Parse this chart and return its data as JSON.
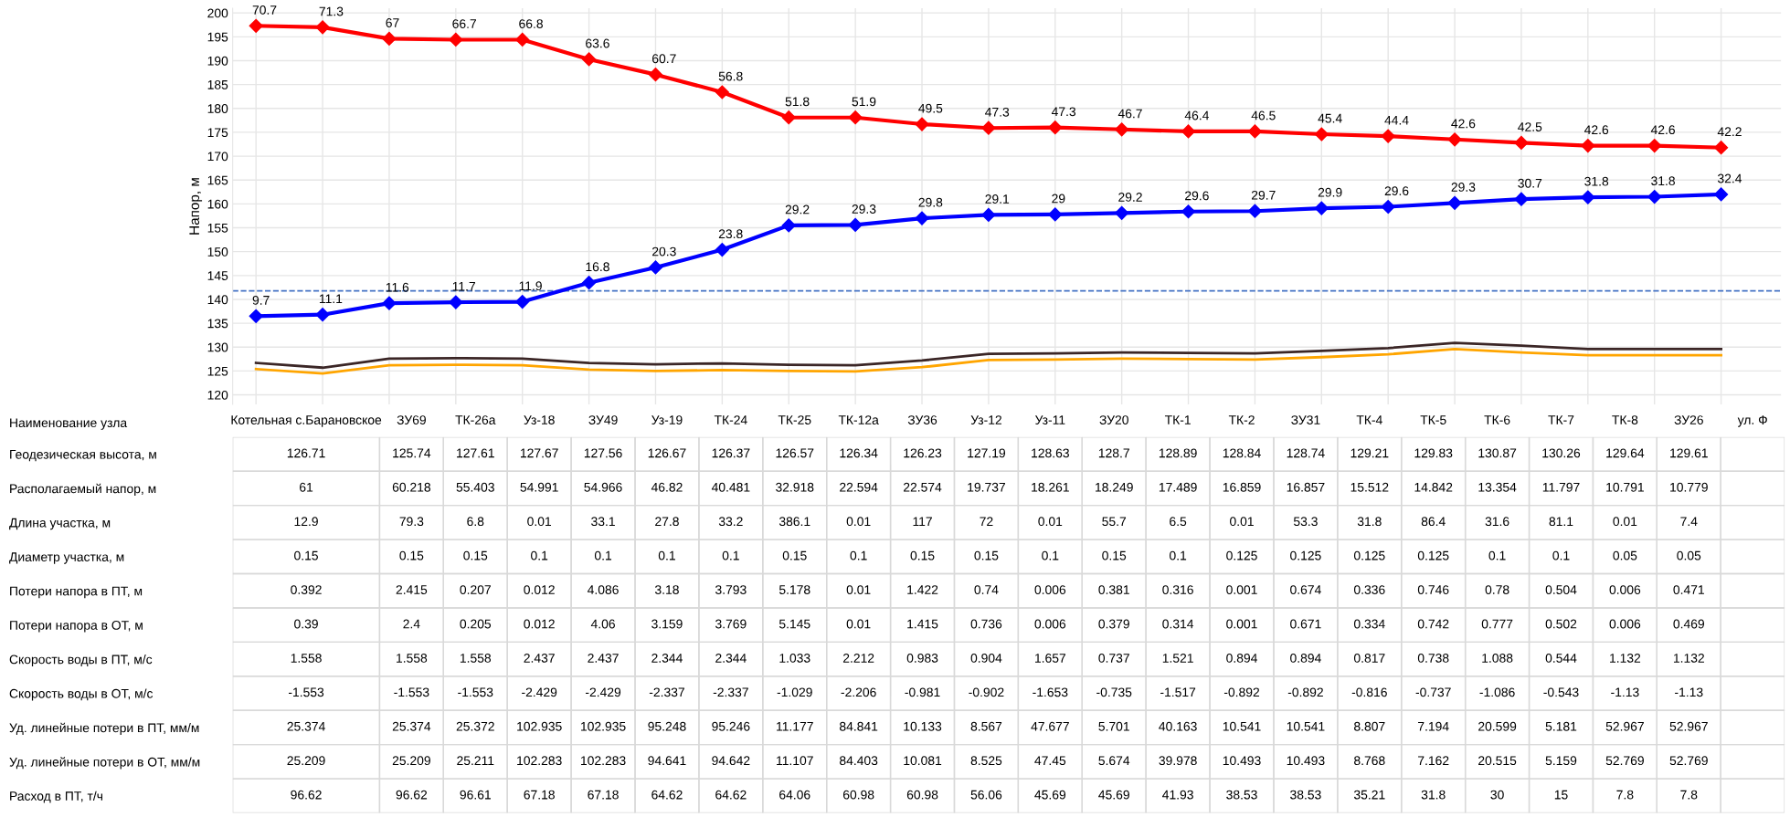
{
  "chart_data": [
    {
      "type": "line",
      "ylabel": "Напор, м",
      "categories": [
        null,
        null,
        null,
        null,
        null,
        null,
        null,
        null,
        null,
        null,
        null,
        null,
        null,
        null,
        null,
        null,
        null,
        null,
        null,
        null,
        null,
        null,
        null
      ],
      "ylim": [
        118,
        201
      ],
      "yticks": [
        120,
        125,
        130,
        135,
        140,
        145,
        150,
        155,
        160,
        165,
        170,
        175,
        180,
        185,
        190,
        195,
        200
      ],
      "grid": true,
      "tick_labels": "y",
      "ref_lines": [
        {
          "axis": "y",
          "value": 141.8,
          "color": "#4472c4",
          "line_style": "dashed"
        }
      ],
      "series": [
        {
          "color": "#ff0000",
          "marker": "diamond",
          "values": [
            197.3,
            197.0,
            194.6,
            194.4,
            194.4,
            190.3,
            187.1,
            183.4,
            178.1,
            178.1,
            176.7,
            175.9,
            176.0,
            175.6,
            175.2,
            175.2,
            174.6,
            174.2,
            173.5,
            172.8,
            172.2,
            172.2,
            171.8
          ]
        },
        {
          "color": "#0000ff",
          "marker": "diamond",
          "values": [
            136.5,
            136.8,
            139.2,
            139.4,
            139.5,
            143.5,
            146.7,
            150.4,
            155.5,
            155.6,
            157.0,
            157.7,
            157.8,
            158.1,
            158.4,
            158.5,
            159.1,
            159.4,
            160.2,
            161.0,
            161.4,
            161.5,
            162.0
          ]
        },
        {
          "color": "#3b2626",
          "marker": "none",
          "values": [
            126.7,
            125.7,
            127.6,
            127.7,
            127.6,
            126.7,
            126.4,
            126.6,
            126.3,
            126.2,
            127.2,
            128.6,
            128.7,
            128.9,
            128.8,
            128.7,
            129.2,
            129.8,
            130.9,
            130.3,
            129.6,
            129.6,
            129.6
          ]
        },
        {
          "color": "#ffa500",
          "marker": "none",
          "values": [
            125.4,
            124.5,
            126.2,
            126.3,
            126.2,
            125.3,
            125.0,
            125.2,
            125.0,
            124.9,
            125.8,
            127.3,
            127.4,
            127.6,
            127.5,
            127.4,
            127.9,
            128.5,
            129.6,
            128.9,
            128.3,
            128.3,
            128.3
          ]
        }
      ],
      "annotations": [
        {
          "text": "70.7",
          "y": 197.3
        },
        {
          "text": "71.3",
          "y": 197.0
        },
        {
          "text": "67",
          "y": 194.6
        },
        {
          "text": "66.7",
          "y": 194.4
        },
        {
          "text": "66.8",
          "y": 194.4
        },
        {
          "text": "63.6",
          "y": 190.3
        },
        {
          "text": "60.7",
          "y": 187.1
        },
        {
          "text": "56.8",
          "y": 183.4
        },
        {
          "text": "51.8",
          "y": 178.1
        },
        {
          "text": "51.9",
          "y": 178.1
        },
        {
          "text": "49.5",
          "y": 176.7
        },
        {
          "text": "47.3",
          "y": 175.9
        },
        {
          "text": "47.3",
          "y": 176.0
        },
        {
          "text": "46.7",
          "y": 175.6
        },
        {
          "text": "46.4",
          "y": 175.2
        },
        {
          "text": "46.5",
          "y": 175.2
        },
        {
          "text": "45.4",
          "y": 174.6
        },
        {
          "text": "44.4",
          "y": 174.2
        },
        {
          "text": "42.6",
          "y": 173.5
        },
        {
          "text": "42.5",
          "y": 172.8
        },
        {
          "text": "42.6",
          "y": 172.2
        },
        {
          "text": "42.6",
          "y": 172.2
        },
        {
          "text": "42.2",
          "y": 171.8
        },
        {
          "text": "9.7",
          "y": 136.5
        },
        {
          "text": "11.1",
          "y": 136.8
        },
        {
          "text": "11.6",
          "y": 139.2
        },
        {
          "text": "11.7",
          "y": 139.4
        },
        {
          "text": "11.9",
          "y": 139.5
        },
        {
          "text": "16.8",
          "y": 143.5
        },
        {
          "text": "20.3",
          "y": 146.7
        },
        {
          "text": "23.8",
          "y": 150.4
        },
        {
          "text": "29.2",
          "y": 155.5
        },
        {
          "text": "29.3",
          "y": 155.6
        },
        {
          "text": "29.8",
          "y": 157.0
        },
        {
          "text": "29.1",
          "y": 157.7
        },
        {
          "text": "29",
          "y": 157.8
        },
        {
          "text": "29.2",
          "y": 158.1
        },
        {
          "text": "29.6",
          "y": 158.4
        },
        {
          "text": "29.7",
          "y": 158.5
        },
        {
          "text": "29.9",
          "y": 159.1
        },
        {
          "text": "29.6",
          "y": 159.4
        },
        {
          "text": "29.3",
          "y": 160.2
        },
        {
          "text": "30.7",
          "y": 161.0
        },
        {
          "text": "31.8",
          "y": 161.4
        },
        {
          "text": "31.8",
          "y": 161.5
        },
        {
          "text": "32.4",
          "y": 162.0
        }
      ]
    },
    {
      "type": "heatmap",
      "annotations": [
        "Наименование узла"
      ],
      "data_labels": true,
      "categories": [
        "Котельная с.Барановское",
        "ЗУ69",
        "ТК-26а",
        "Уз-18",
        "ЗУ49",
        "Уз-19",
        "ТК-24",
        "ТК-25",
        "ТК-12а",
        "ЗУ36",
        "Уз-12",
        "Уз-11",
        "ЗУ20",
        "ТК-1",
        "ТК-2",
        "ЗУ31",
        "ТК-4",
        "ТК-5",
        "ТК-6",
        "ТК-7",
        "ТК-8",
        "ЗУ26",
        "ул. Ф"
      ],
      "y_categories": [
        "Геодезическая высота, м",
        "Располагаемый напор, м",
        "Длина участка, м",
        "Диаметр участка, м",
        "Потери напора в ПТ, м",
        "Потери напора в ОТ, м",
        "Скорость воды в ПТ, м/с",
        "Скорость воды в ОТ, м/с",
        "Уд. линейные потери в ПТ, мм/м",
        "Уд. линейные потери в ОТ, мм/м",
        "Расход в ПТ, т/ч"
      ],
      "cells": [
        [
          126.71,
          125.74,
          127.61,
          127.67,
          127.56,
          126.67,
          126.37,
          126.57,
          126.34,
          126.23,
          127.19,
          128.63,
          128.7,
          128.89,
          128.84,
          128.74,
          129.21,
          129.83,
          130.87,
          130.26,
          129.64,
          129.61,
          null
        ],
        [
          61,
          60.218,
          55.403,
          54.991,
          54.966,
          46.82,
          40.481,
          32.918,
          22.594,
          22.574,
          19.737,
          18.261,
          18.249,
          17.489,
          16.859,
          16.857,
          15.512,
          14.842,
          13.354,
          11.797,
          10.791,
          10.779,
          null
        ],
        [
          12.9,
          79.3,
          6.8,
          0.01,
          33.1,
          27.8,
          33.2,
          386.1,
          0.01,
          117,
          72,
          0.01,
          55.7,
          6.5,
          0.01,
          53.3,
          31.8,
          86.4,
          31.6,
          81.1,
          0.01,
          7.4,
          null
        ],
        [
          0.15,
          0.15,
          0.15,
          0.1,
          0.1,
          0.1,
          0.1,
          0.15,
          0.1,
          0.15,
          0.15,
          0.1,
          0.15,
          0.1,
          0.125,
          0.125,
          0.125,
          0.125,
          0.1,
          0.1,
          0.05,
          0.05,
          null
        ],
        [
          0.392,
          2.415,
          0.207,
          0.012,
          4.086,
          3.18,
          3.793,
          5.178,
          0.01,
          1.422,
          0.74,
          0.006,
          0.381,
          0.316,
          0.001,
          0.674,
          0.336,
          0.746,
          0.78,
          0.504,
          0.006,
          0.471,
          null
        ],
        [
          0.39,
          2.4,
          0.205,
          0.012,
          4.06,
          3.159,
          3.769,
          5.145,
          0.01,
          1.415,
          0.736,
          0.006,
          0.379,
          0.314,
          0.001,
          0.671,
          0.334,
          0.742,
          0.777,
          0.502,
          0.006,
          0.469,
          null
        ],
        [
          1.558,
          1.558,
          1.558,
          2.437,
          2.437,
          2.344,
          2.344,
          1.033,
          2.212,
          0.983,
          0.904,
          1.657,
          0.737,
          1.521,
          0.894,
          0.894,
          0.817,
          0.738,
          1.088,
          0.544,
          1.132,
          1.132,
          null
        ],
        [
          -1.553,
          -1.553,
          -1.553,
          -2.429,
          -2.429,
          -2.337,
          -2.337,
          -1.029,
          -2.206,
          -0.981,
          -0.902,
          -1.653,
          -0.735,
          -1.517,
          -0.892,
          -0.892,
          -0.816,
          -0.737,
          -1.086,
          -0.543,
          -1.13,
          -1.13,
          null
        ],
        [
          25.374,
          25.374,
          25.372,
          102.935,
          102.935,
          95.248,
          95.246,
          11.177,
          84.841,
          10.133,
          8.567,
          47.677,
          5.701,
          40.163,
          10.541,
          10.541,
          8.807,
          7.194,
          20.599,
          5.181,
          52.967,
          52.967,
          null
        ],
        [
          25.209,
          25.209,
          25.211,
          102.283,
          102.283,
          94.641,
          94.642,
          11.107,
          84.403,
          10.081,
          8.525,
          47.45,
          5.674,
          39.978,
          10.493,
          10.493,
          8.768,
          7.162,
          20.515,
          5.159,
          52.769,
          52.769,
          null
        ],
        [
          96.62,
          96.62,
          96.61,
          67.18,
          67.18,
          64.62,
          64.62,
          64.06,
          60.98,
          60.98,
          56.06,
          45.69,
          45.69,
          41.93,
          38.53,
          38.53,
          35.21,
          31.8,
          30,
          15,
          7.8,
          7.8,
          null
        ]
      ]
    }
  ]
}
